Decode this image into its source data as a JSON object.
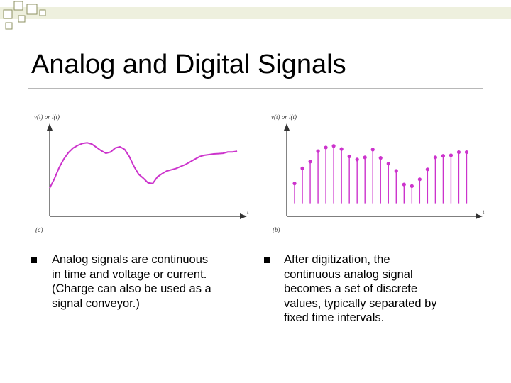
{
  "slide": {
    "title": "Analog and Digital Signals"
  },
  "figures": {
    "analog": {
      "ylabel": "v(t) or i(t)",
      "xlabel": "t",
      "caption": "(a)"
    },
    "digital": {
      "ylabel": "v(t) or i(t)",
      "xlabel": "t",
      "caption": "(b)"
    }
  },
  "chart_data": [
    {
      "type": "line",
      "xlabel": "t",
      "ylabel": "v(t) or i(t)",
      "x": [
        0,
        0.25,
        0.5,
        0.75,
        1,
        1.25,
        1.5,
        1.75,
        2,
        2.25,
        2.5,
        2.75,
        3,
        3.25,
        3.5,
        3.75,
        4,
        4.25,
        4.5,
        4.75,
        5,
        5.25,
        5.5,
        5.75,
        6,
        6.25,
        6.5,
        6.75,
        7,
        7.25,
        7.5,
        7.75,
        8,
        8.25,
        8.5,
        8.75,
        9,
        9.25,
        9.5,
        9.75,
        10
      ],
      "values": [
        0.8,
        2.2,
        3.9,
        5.2,
        6.2,
        6.9,
        7.3,
        7.6,
        7.7,
        7.5,
        7.0,
        6.5,
        6.1,
        6.3,
        6.9,
        7.1,
        6.7,
        5.6,
        4.1,
        2.9,
        2.3,
        1.6,
        1.5,
        2.5,
        3.0,
        3.4,
        3.6,
        3.8,
        4.1,
        4.4,
        4.8,
        5.2,
        5.6,
        5.8,
        5.9,
        6.0,
        6.05,
        6.1,
        6.3,
        6.3,
        6.4
      ],
      "xlim": [
        0,
        10.3
      ],
      "ylim": [
        -3.5,
        10
      ],
      "color": "#cc33cc"
    },
    {
      "type": "scatter",
      "xlabel": "t",
      "ylabel": "v(t) or i(t)",
      "x": [
        0.6,
        1.2,
        1.8,
        2.4,
        3.0,
        3.6,
        4.2,
        4.8,
        5.4,
        6.0,
        6.6,
        7.2,
        7.8,
        8.4,
        9.0,
        9.6,
        10.2,
        10.8,
        11.4,
        12.0,
        12.6,
        13.2,
        13.8
      ],
      "values": [
        3.8,
        6.7,
        8.0,
        10.0,
        10.7,
        11.0,
        10.4,
        9.0,
        8.4,
        8.8,
        10.3,
        8.7,
        7.6,
        6.2,
        3.6,
        3.3,
        4.6,
        6.5,
        8.8,
        9.1,
        9.2,
        9.8,
        9.8
      ],
      "xlim": [
        0,
        14.7
      ],
      "ylim": [
        -2.5,
        14.5
      ],
      "color": "#cc33cc"
    }
  ],
  "bullets": [
    {
      "lines": [
        "Analog signals are continuous",
        "in time and voltage or current.",
        "(Charge can also be used as a",
        "signal conveyor.)"
      ]
    },
    {
      "lines": [
        "After digitization, the",
        "continuous analog signal",
        "becomes a set of discrete",
        "values, typically separated by",
        "fixed time intervals."
      ]
    }
  ],
  "theme": {
    "accent": "#cc33cc",
    "square_light": "#e6e9cf",
    "square_dark": "#a9ad74"
  }
}
